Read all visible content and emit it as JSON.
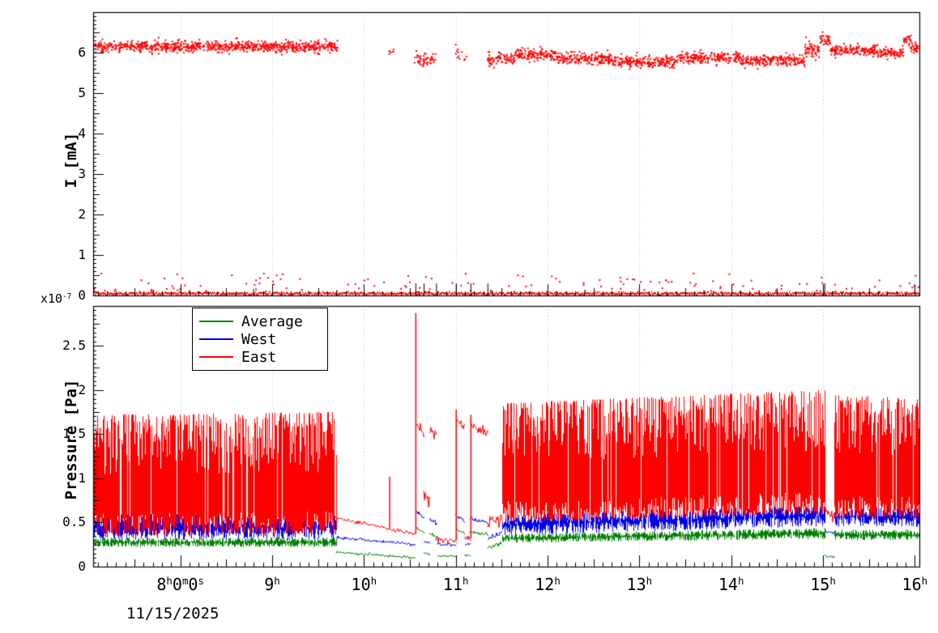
{
  "labels": {
    "date": "11/15/2025",
    "exponent": "x10",
    "exponent_sup": "-7",
    "top_ylabel": "I [mA]",
    "bottom_ylabel": "Pressure [Pa]"
  },
  "palette": {
    "east": "#ff0000",
    "west": "#0000ee",
    "average": "#008000",
    "grid": "#bbbbbb",
    "frame": "#000000"
  },
  "x_axis": {
    "lim": [
      7.05,
      16.05
    ],
    "minor_step": 0.1,
    "major_ticks": [
      {
        "value": 8,
        "label": "8^h0^m0^s"
      },
      {
        "value": 9,
        "label": "9^h"
      },
      {
        "value": 10,
        "label": "10^h"
      },
      {
        "value": 11,
        "label": "11^h"
      },
      {
        "value": 12,
        "label": "12^h"
      },
      {
        "value": 13,
        "label": "13^h"
      },
      {
        "value": 14,
        "label": "14^h"
      },
      {
        "value": 15,
        "label": "15^h"
      },
      {
        "value": 16,
        "label": "16^h"
      }
    ]
  },
  "chart_data": [
    {
      "type": "scatter",
      "name": "beam-current",
      "title": "",
      "ylabel": "I [mA]",
      "ylim": [
        0,
        7.0
      ],
      "yticks": [
        0,
        1,
        2,
        3,
        4,
        5,
        6
      ],
      "series": {
        "name": "beam-current",
        "color": "#ff0000",
        "clusters": [
          {
            "t0": 7.05,
            "t1": 9.72,
            "mean": 6.15,
            "sd": 0.07,
            "per_hour": 300
          },
          {
            "t0": 10.27,
            "t1": 10.33,
            "mean": 6.02,
            "sd": 0.05,
            "per_hour": 120
          },
          {
            "t0": 10.55,
            "t1": 10.78,
            "mean": 5.82,
            "sd": 0.09,
            "per_hour": 220
          },
          {
            "t0": 11.0,
            "t1": 11.12,
            "mean": 5.95,
            "sd": 0.1,
            "per_hour": 100
          },
          {
            "t0": 11.35,
            "t1": 11.65,
            "mean": 5.82,
            "sd": 0.09,
            "per_hour": 260
          },
          {
            "t0": 11.65,
            "t1": 12.1,
            "mean": 5.95,
            "sd": 0.07,
            "per_hour": 300
          },
          {
            "t0": 12.1,
            "t1": 12.7,
            "mean": 5.85,
            "sd": 0.07,
            "per_hour": 300
          },
          {
            "t0": 12.7,
            "t1": 13.4,
            "mean": 5.78,
            "sd": 0.07,
            "per_hour": 300
          },
          {
            "t0": 13.4,
            "t1": 14.1,
            "mean": 5.88,
            "sd": 0.07,
            "per_hour": 300
          },
          {
            "t0": 14.1,
            "t1": 14.8,
            "mean": 5.8,
            "sd": 0.07,
            "per_hour": 300
          },
          {
            "t0": 14.8,
            "t1": 14.97,
            "mean": 6.05,
            "sd": 0.1,
            "per_hour": 300
          },
          {
            "t0": 14.97,
            "t1": 15.08,
            "mean": 6.32,
            "sd": 0.07,
            "per_hour": 300
          },
          {
            "t0": 15.08,
            "t1": 15.6,
            "mean": 6.05,
            "sd": 0.06,
            "per_hour": 300
          },
          {
            "t0": 15.6,
            "t1": 15.88,
            "mean": 5.98,
            "sd": 0.06,
            "per_hour": 300
          },
          {
            "t0": 15.88,
            "t1": 15.96,
            "mean": 6.3,
            "sd": 0.08,
            "per_hour": 300
          },
          {
            "t0": 15.96,
            "t1": 16.05,
            "mean": 6.12,
            "sd": 0.06,
            "per_hour": 300
          }
        ],
        "baseline": {
          "t0": 7.05,
          "t1": 16.05,
          "mean": 0.05,
          "sd": 0.03
        },
        "outliers": {
          "count": 150,
          "ymin": 0.08,
          "ymax": 0.55
        },
        "event_marks": {
          "color": "#000000",
          "height": 0.3,
          "times": [
            10.565,
            10.655,
            10.79,
            11.005,
            11.165,
            11.35,
            15.02
          ]
        }
      }
    },
    {
      "type": "line",
      "name": "pressure",
      "title": "",
      "ylabel": "Pressure [Pa]",
      "y_scale_exponent": -7,
      "ylim": [
        0,
        2.95
      ],
      "yticks": [
        0,
        0.5,
        1,
        1.5,
        2,
        2.5
      ],
      "legend": {
        "position": "top-left",
        "entries": [
          {
            "label": "Average",
            "color": "#008000"
          },
          {
            "label": "West",
            "color": "#0000ee"
          },
          {
            "label": "East",
            "color": "#ff0000"
          }
        ]
      },
      "series": [
        {
          "name": "Average",
          "color": "#008000",
          "segments": [
            {
              "mode": "hash",
              "t0": 7.05,
              "t1": 9.7,
              "lo0": 0.22,
              "lo1": 0.22,
              "hi0": 0.33,
              "hi1": 0.33
            },
            {
              "mode": "line",
              "t0": 9.7,
              "t1": 10.555,
              "v0": 0.16,
              "v1": 0.1,
              "noise": 0.008
            },
            {
              "mode": "line",
              "t0": 10.575,
              "t1": 10.655,
              "v0": 0.43,
              "v1": 0.38,
              "noise": 0.01
            },
            {
              "mode": "line",
              "t0": 10.655,
              "t1": 10.72,
              "v0": 0.15,
              "v1": 0.15,
              "noise": 0.01
            },
            {
              "mode": "line",
              "t0": 10.72,
              "t1": 10.8,
              "v0": 0.37,
              "v1": 0.34,
              "noise": 0.01
            },
            {
              "mode": "line",
              "t0": 10.8,
              "t1": 11.0,
              "v0": 0.12,
              "v1": 0.12,
              "noise": 0.008
            },
            {
              "mode": "line",
              "t0": 11.0,
              "t1": 11.1,
              "v0": 0.42,
              "v1": 0.38,
              "noise": 0.01
            },
            {
              "mode": "line",
              "t0": 11.1,
              "t1": 11.16,
              "v0": 0.13,
              "v1": 0.13,
              "noise": 0.008
            },
            {
              "mode": "line",
              "t0": 11.16,
              "t1": 11.35,
              "v0": 0.39,
              "v1": 0.36,
              "noise": 0.01
            },
            {
              "mode": "line",
              "t0": 11.35,
              "t1": 11.5,
              "v0": 0.22,
              "v1": 0.26,
              "noise": 0.012
            },
            {
              "mode": "hash",
              "t0": 11.5,
              "t1": 15.02,
              "lo0": 0.27,
              "lo1": 0.31,
              "hi0": 0.37,
              "hi1": 0.44
            },
            {
              "mode": "line",
              "t0": 15.02,
              "t1": 15.12,
              "v0": 0.12,
              "v1": 0.1,
              "noise": 0.01
            },
            {
              "mode": "hash",
              "t0": 15.12,
              "t1": 16.05,
              "lo0": 0.3,
              "lo1": 0.3,
              "hi0": 0.42,
              "hi1": 0.42
            }
          ]
        },
        {
          "name": "West",
          "color": "#0000ee",
          "segments": [
            {
              "mode": "hash",
              "t0": 7.05,
              "t1": 9.7,
              "lo0": 0.3,
              "lo1": 0.3,
              "hi0": 0.6,
              "hi1": 0.58
            },
            {
              "mode": "line",
              "t0": 9.7,
              "t1": 10.555,
              "v0": 0.33,
              "v1": 0.25,
              "noise": 0.008
            },
            {
              "mode": "line",
              "t0": 10.575,
              "t1": 10.655,
              "v0": 0.62,
              "v1": 0.55,
              "noise": 0.012
            },
            {
              "mode": "line",
              "t0": 10.655,
              "t1": 10.72,
              "v0": 0.28,
              "v1": 0.28,
              "noise": 0.01
            },
            {
              "mode": "line",
              "t0": 10.72,
              "t1": 10.8,
              "v0": 0.53,
              "v1": 0.48,
              "noise": 0.012
            },
            {
              "mode": "line",
              "t0": 10.8,
              "t1": 11.0,
              "v0": 0.25,
              "v1": 0.25,
              "noise": 0.008
            },
            {
              "mode": "line",
              "t0": 11.0,
              "t1": 11.1,
              "v0": 0.58,
              "v1": 0.52,
              "noise": 0.012
            },
            {
              "mode": "line",
              "t0": 11.1,
              "t1": 11.16,
              "v0": 0.26,
              "v1": 0.26,
              "noise": 0.008
            },
            {
              "mode": "line",
              "t0": 11.16,
              "t1": 11.35,
              "v0": 0.54,
              "v1": 0.5,
              "noise": 0.012
            },
            {
              "mode": "line",
              "t0": 11.35,
              "t1": 11.5,
              "v0": 0.32,
              "v1": 0.38,
              "noise": 0.015
            },
            {
              "mode": "hash",
              "t0": 11.5,
              "t1": 15.02,
              "lo0": 0.35,
              "lo1": 0.45,
              "hi0": 0.6,
              "hi1": 0.7
            },
            {
              "mode": "line",
              "t0": 15.02,
              "t1": 15.12,
              "v0": 0.4,
              "v1": 0.38,
              "noise": 0.012
            },
            {
              "mode": "hash",
              "t0": 15.12,
              "t1": 16.05,
              "lo0": 0.45,
              "lo1": 0.45,
              "hi0": 0.68,
              "hi1": 0.68
            }
          ]
        },
        {
          "name": "East",
          "color": "#ff0000",
          "segments": [
            {
              "mode": "hash",
              "t0": 7.05,
              "t1": 9.7,
              "lo0": 0.35,
              "lo1": 0.38,
              "hi0": 1.72,
              "hi1": 1.75
            },
            {
              "mode": "line",
              "t0": 9.7,
              "t1": 10.27,
              "v0": 0.55,
              "v1": 0.43,
              "noise": 0.01
            },
            {
              "mode": "spike",
              "t": 10.28,
              "base": 0.42,
              "peak": 1.02
            },
            {
              "mode": "line",
              "t0": 10.29,
              "t1": 10.555,
              "v0": 0.42,
              "v1": 0.37,
              "noise": 0.01
            },
            {
              "mode": "spike",
              "t": 10.565,
              "base": 0.37,
              "peak": 2.87
            },
            {
              "mode": "line",
              "t0": 10.575,
              "t1": 10.655,
              "v0": 1.62,
              "v1": 1.5,
              "noise": 0.03
            },
            {
              "mode": "line",
              "t0": 10.655,
              "t1": 10.72,
              "v0": 0.8,
              "v1": 0.8,
              "noise": 0.05
            },
            {
              "mode": "line",
              "t0": 10.72,
              "t1": 10.79,
              "v0": 1.55,
              "v1": 1.5,
              "noise": 0.03
            },
            {
              "mode": "line",
              "t0": 10.79,
              "t1": 11.0,
              "v0": 0.3,
              "v1": 0.3,
              "noise": 0.02
            },
            {
              "mode": "spike",
              "t": 11.005,
              "base": 0.3,
              "peak": 1.78
            },
            {
              "mode": "line",
              "t0": 11.01,
              "t1": 11.1,
              "v0": 1.65,
              "v1": 1.58,
              "noise": 0.03
            },
            {
              "mode": "line",
              "t0": 11.1,
              "t1": 11.16,
              "v0": 0.32,
              "v1": 0.32,
              "noise": 0.02
            },
            {
              "mode": "spike",
              "t": 11.165,
              "base": 0.32,
              "peak": 1.72
            },
            {
              "mode": "line",
              "t0": 11.17,
              "t1": 11.35,
              "v0": 1.6,
              "v1": 1.52,
              "noise": 0.03
            },
            {
              "mode": "line",
              "t0": 11.35,
              "t1": 11.5,
              "v0": 0.48,
              "v1": 0.55,
              "noise": 0.04
            },
            {
              "mode": "hash",
              "t0": 11.5,
              "t1": 15.02,
              "lo0": 0.5,
              "lo1": 0.6,
              "hi0": 1.85,
              "hi1": 2.0
            },
            {
              "mode": "line",
              "t0": 15.02,
              "t1": 15.12,
              "v0": 0.65,
              "v1": 0.6,
              "noise": 0.04
            },
            {
              "mode": "hash",
              "t0": 15.12,
              "t1": 16.05,
              "lo0": 0.55,
              "lo1": 0.55,
              "hi0": 1.95,
              "hi1": 1.9
            }
          ]
        }
      ]
    }
  ]
}
